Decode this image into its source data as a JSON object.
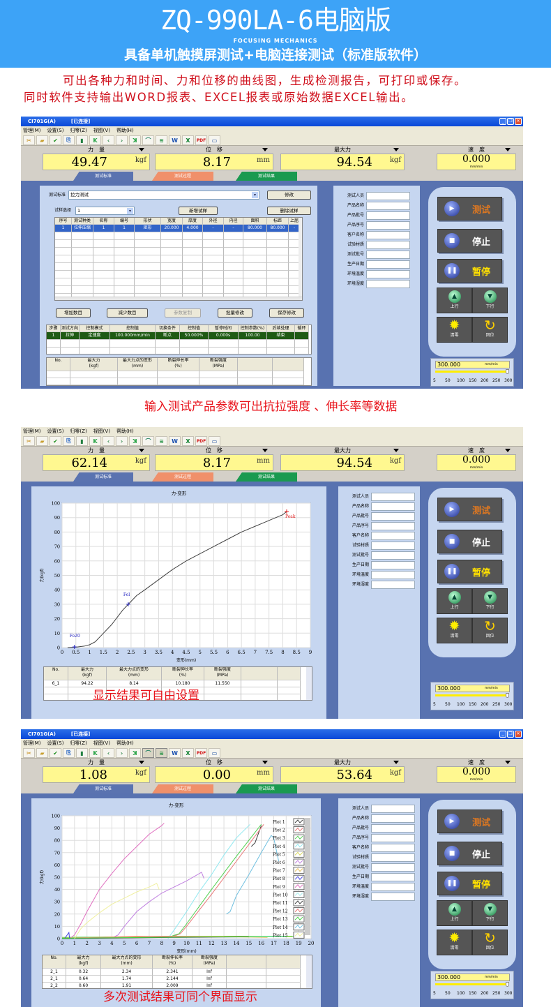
{
  "header": {
    "title": "ZQ-990LA-6电脑版",
    "brand": "FOCUSING MECHANICS",
    "subtitle": "具备单机触摸屏测试+电脑连接测试（标准版软件）"
  },
  "intro": {
    "line1": "可出各种力和时间、力和位移的曲线图，生成检测报告，可打印或保存。",
    "line2": "同时软件支持输出WORD报表、EXCEL报表或原始数据EXCEL输出。"
  },
  "captions": {
    "c1": "输入测试产品参数可出抗拉强度 、伸长率等数据",
    "c2": "显示结果可自由设置",
    "c3": "多次测试结果可同个界面显示"
  },
  "colors": {
    "header_bg": "#3da3f7",
    "caption_red": "#e8141c",
    "tab_standard": "#5a73b0",
    "tab_process": "#f0906a",
    "tab_result": "#1a9a50",
    "readout_bg": "#fff890"
  },
  "app": {
    "title": "CI701G(A)",
    "status": "[已连接]",
    "menu": [
      "管理(M)",
      "设置(S)",
      "归零(Z)",
      "视图(V)",
      "帮助(H)"
    ],
    "toolbar_icons": [
      "tools-icon",
      "open-folder-icon",
      "check-document-icon",
      "export-icon",
      "trash-icon",
      "first-icon",
      "previous-icon",
      "next-icon",
      "last-icon",
      "curve-icon",
      "multi-curve-icon",
      "word-icon",
      "excel-icon",
      "pdf-icon",
      "monitor-icon"
    ],
    "readout_labels": [
      "力　量",
      "位　移",
      "最大力",
      "速　度"
    ],
    "readout_units": [
      "kgf",
      "mm",
      "kgf",
      "mm/min"
    ],
    "tabs": [
      "测试标准",
      "测试过程",
      "测试结果"
    ],
    "fields": [
      "测试人员",
      "产品名称",
      "产品批号",
      "产品序号",
      "客户名称",
      "试验材质",
      "测试批号",
      "生产日期",
      "环境温度",
      "环境湿度"
    ],
    "controls": {
      "test": "测试",
      "stop": "停止",
      "pause": "暂停",
      "up": "上行",
      "down": "下行",
      "zero": "清零",
      "return": "回位"
    },
    "speed": {
      "value": "300.000",
      "unit": "mm/min",
      "ticks": [
        "5",
        "50",
        "100",
        "150",
        "200",
        "250",
        "300"
      ],
      "slider_value": 300,
      "slider_min": 5,
      "slider_max": 300
    },
    "result_headers": [
      "No.",
      "最大力\n(kgf)",
      "最大力点的变形\n(mm)",
      "断裂伸长率\n(%)",
      "断裂强度\n(MPa)",
      "",
      ""
    ]
  },
  "windows": [
    {
      "has_title": true,
      "readouts": [
        "49.47",
        "8.17",
        "94.54",
        "0.000"
      ],
      "form": {
        "std_label": "测试标准",
        "std_value": "拉力测试",
        "modify": "修改",
        "sample_label": "试样选择",
        "sample_value": "1",
        "add_sample": "新增试样",
        "del_sample": "删除试样",
        "headers": [
          "序号",
          "测试种类",
          "名称",
          "编号",
          "形状",
          "宽度",
          "厚度",
          "外径",
          "内径",
          "面积",
          "标距",
          "上屈"
        ],
        "rows": [
          [
            "1",
            "拉伸压缩",
            "1",
            "1",
            "矩形",
            "20.000",
            "4.000",
            "-",
            "-",
            "80.000",
            "80.000",
            "-"
          ]
        ],
        "buttons": [
          "增加数目",
          "减少数目",
          "参数复制",
          "批量修改",
          "保存修改"
        ],
        "step_headers": [
          "步骤",
          "测试方向",
          "控制模式",
          "控制值",
          "切换条件",
          "控制值",
          "暂停时间",
          "控制参数(%)",
          "后续处理",
          "循环"
        ],
        "step_rows": [
          [
            "1",
            "拉伸",
            "定速度",
            "100.000mm/min",
            "断点",
            "50.000%",
            "0.000s",
            "100.00",
            "结束",
            ""
          ]
        ]
      },
      "results": []
    },
    {
      "has_title": false,
      "readouts": [
        "62.14",
        "8.17",
        "94.54",
        "0.000"
      ],
      "results": [
        [
          "6_1",
          "94.22",
          "8.14",
          "10.180",
          "11.550",
          "",
          ""
        ]
      ]
    },
    {
      "has_title": true,
      "readouts": [
        "1.08",
        "0.00",
        "53.64",
        "0.000"
      ],
      "results": [
        [
          "2_1",
          "0.32",
          "2.34",
          "2.341",
          "Inf",
          "",
          ""
        ],
        [
          "2_1",
          "0.64",
          "1.74",
          "2.144",
          "Inf",
          "",
          ""
        ],
        [
          "2_2",
          "0.60",
          "1.91",
          "2.009",
          "Inf",
          "",
          ""
        ]
      ]
    }
  ],
  "chart_data": [
    {
      "type": "line",
      "title": "力-变形",
      "xlabel": "变形(mm)",
      "ylabel": "力(kgf)",
      "xlim": [
        0,
        9
      ],
      "ylim": [
        0,
        100
      ],
      "grid": true,
      "xticks": [
        "0",
        "0.5",
        "1",
        "1.5",
        "2",
        "2.5",
        "3",
        "3.5",
        "4",
        "4.5",
        "5",
        "5.5",
        "6",
        "6.5",
        "7",
        "7.5",
        "8",
        "8.5",
        "9"
      ],
      "yticks": [
        "0",
        "10",
        "20",
        "30",
        "40",
        "50",
        "60",
        "70",
        "80",
        "90",
        "100"
      ],
      "series": [
        {
          "color": "#404040",
          "x": [
            0.2,
            0.5,
            0.8,
            1,
            1.2,
            1.5,
            1.8,
            2,
            2.2,
            2.4,
            2.7,
            3,
            3.5,
            4,
            4.5,
            5,
            5.5,
            6,
            6.5,
            7,
            7.5,
            8,
            8.14
          ],
          "y": [
            0,
            0.3,
            1,
            2,
            4,
            10,
            16,
            21,
            26,
            30,
            36,
            40,
            47,
            54,
            60,
            65,
            70,
            75,
            80,
            84,
            88,
            92,
            94.22
          ]
        }
      ],
      "annotations": [
        {
          "text": "Fe20",
          "x": 0.45,
          "y": 0.5,
          "color": "#2020c0"
        },
        {
          "text": "Fel",
          "x": 2.4,
          "y": 30,
          "color": "#2020c0"
        },
        {
          "text": "Peak",
          "x": 8.14,
          "y": 94.2,
          "color": "#e02020"
        }
      ]
    },
    {
      "type": "line",
      "title": "力-变形",
      "xlabel": "变形(mm)",
      "ylabel": "力(kgf)",
      "xlim": [
        0,
        20
      ],
      "ylim": [
        0,
        100
      ],
      "grid": true,
      "legend": "right",
      "xticks": [
        "0",
        "1",
        "2",
        "3",
        "4",
        "5",
        "6",
        "7",
        "8",
        "9",
        "10",
        "11",
        "12",
        "13",
        "14",
        "15",
        "16",
        "17",
        "18",
        "19",
        "20"
      ],
      "yticks": [
        "0",
        "10",
        "20",
        "30",
        "40",
        "50",
        "60",
        "70",
        "80",
        "90",
        "100"
      ],
      "series": [
        {
          "name": "Plot 1",
          "color": "#404040",
          "x": [
            15.2,
            15.5,
            16
          ],
          "y": [
            75,
            78,
            92
          ]
        },
        {
          "name": "Plot 2",
          "color": "#e87878",
          "x": [
            0,
            9,
            9.5,
            10,
            12,
            14,
            16.2
          ],
          "y": [
            0.5,
            2,
            4,
            10,
            36,
            63,
            93
          ]
        },
        {
          "name": "Plot 3",
          "color": "#50d050",
          "x": [
            0,
            8.8,
            9.4,
            10,
            12,
            14,
            16
          ],
          "y": [
            1,
            2,
            4,
            12,
            40,
            67,
            93
          ]
        },
        {
          "name": "Plot 4",
          "color": "#90e8f0",
          "x": [
            8.5,
            9,
            10,
            11,
            12,
            13,
            14,
            15,
            15.1
          ],
          "y": [
            0,
            7,
            22,
            38,
            52,
            68,
            82,
            92,
            93
          ]
        },
        {
          "name": "Plot 5",
          "color": "#d8d860",
          "x": [
            0,
            5,
            10,
            15,
            18.5
          ],
          "y": [
            0.5,
            1.5,
            2,
            2,
            1.5
          ]
        },
        {
          "name": "Plot 6",
          "color": "#c080e0",
          "x": [
            4,
            4.5,
            5,
            6,
            7,
            8,
            9,
            10,
            11.2,
            11.4
          ],
          "y": [
            0.5,
            3,
            10,
            22,
            30,
            37,
            42,
            47,
            54,
            49
          ]
        },
        {
          "name": "Plot 7",
          "color": "#e8c060",
          "x": [
            0,
            6,
            12,
            16.5
          ],
          "y": [
            0,
            2,
            1.5,
            1
          ]
        },
        {
          "name": "Plot 8",
          "color": "#4040e0",
          "x": [
            0.2,
            0.55,
            0.6
          ],
          "y": [
            0,
            5,
            0
          ]
        },
        {
          "name": "Plot 9",
          "color": "#e070c0",
          "x": [
            0.6,
            1,
            1.5,
            2,
            3,
            4,
            5,
            6,
            7,
            8,
            8.2
          ],
          "y": [
            0,
            3,
            12,
            22,
            40,
            53,
            65,
            75,
            85,
            92,
            94
          ]
        },
        {
          "name": "Plot 10",
          "color": "#a8f0f0",
          "x": [
            0,
            10,
            18
          ],
          "y": [
            0.2,
            1,
            1.5
          ]
        },
        {
          "name": "Plot 11",
          "color": "#404040",
          "x": [
            0,
            9,
            15
          ],
          "y": [
            0,
            1,
            1.5
          ]
        },
        {
          "name": "Plot 12",
          "color": "#e87878",
          "x": [
            1,
            8,
            13
          ],
          "y": [
            0.5,
            2,
            1.5
          ]
        },
        {
          "name": "Plot 13",
          "color": "#40d040",
          "x": [
            0,
            12,
            19
          ],
          "y": [
            0.3,
            1.5,
            2
          ]
        },
        {
          "name": "Plot 14",
          "color": "#70c0e0",
          "x": [
            13.2,
            13.5,
            14,
            15,
            16,
            16.8,
            17,
            17.4
          ],
          "y": [
            20,
            22,
            35,
            52,
            70,
            84,
            82,
            63
          ]
        },
        {
          "name": "Plot 15",
          "color": "#f0f0a0",
          "x": [
            1,
            1.5,
            2,
            3,
            4,
            5,
            6,
            7,
            7.6,
            7.8
          ],
          "y": [
            0,
            8,
            13,
            21,
            28,
            33,
            38,
            42,
            45,
            40
          ]
        }
      ]
    }
  ]
}
